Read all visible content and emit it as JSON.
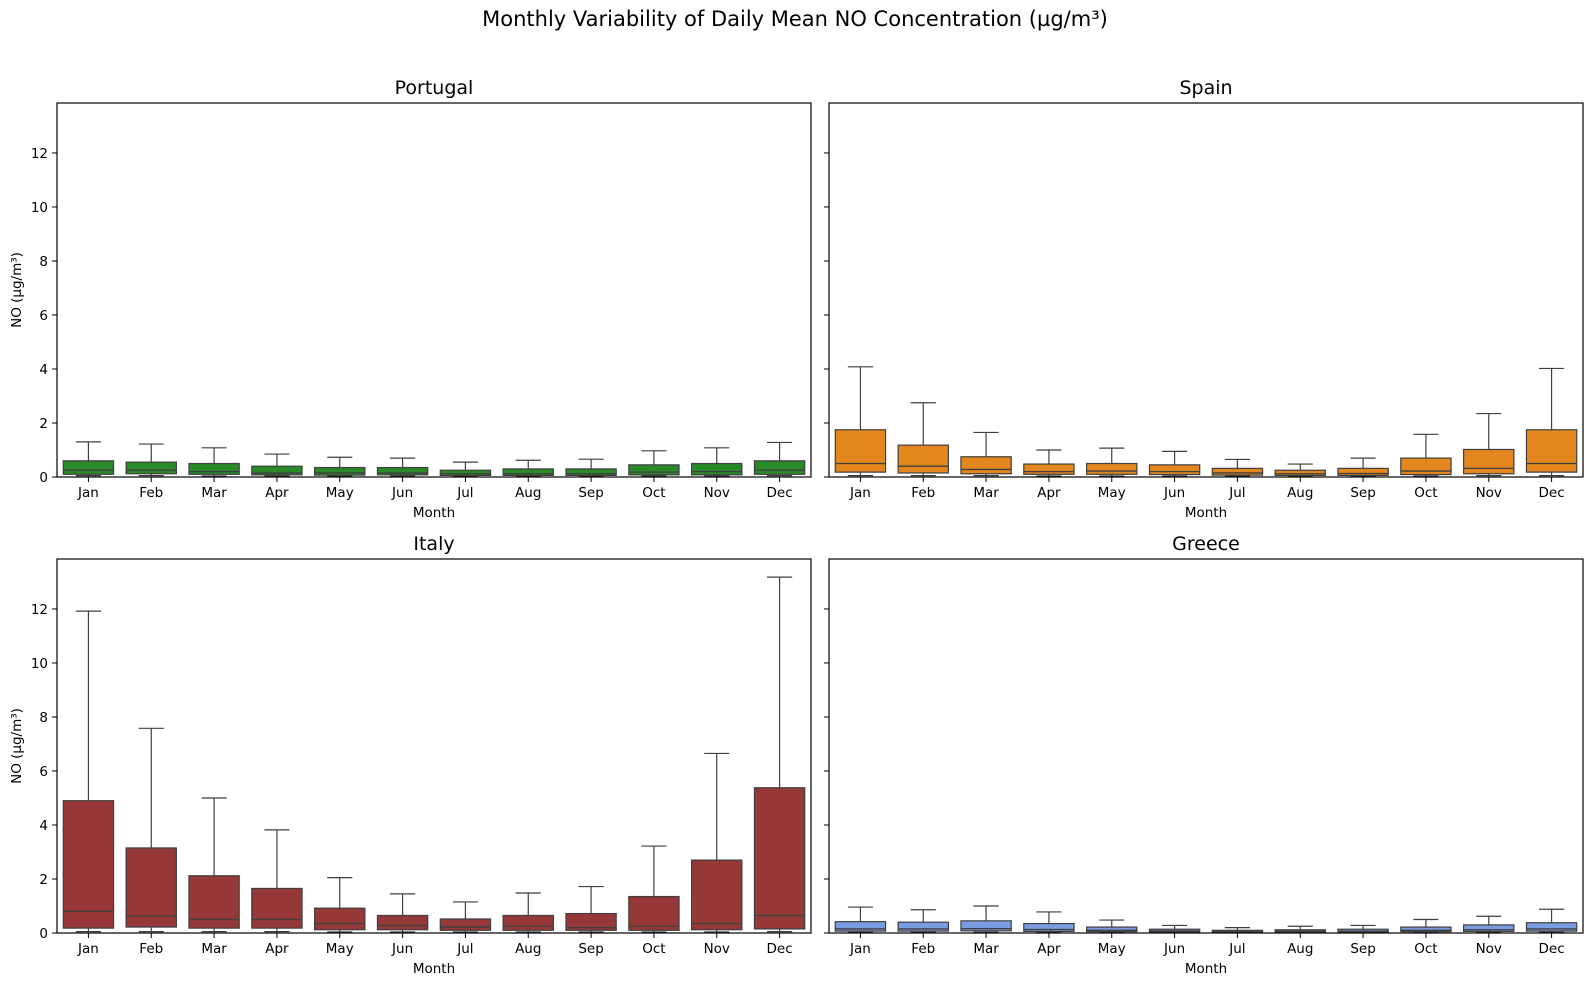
{
  "figure": {
    "title": "Monthly Variability of Daily Mean NO Concentration (µg/m³)"
  },
  "chart_data": [
    {
      "type": "box",
      "title": "Portugal",
      "color": "#2a8a2a",
      "xlabel": "Month",
      "ylabel": "NO (µg/m³)",
      "ylim": [
        0,
        13.85
      ],
      "yticks": [
        0,
        2,
        4,
        6,
        8,
        10,
        12
      ],
      "show_ytick_labels": true,
      "categories": [
        "Jan",
        "Feb",
        "Mar",
        "Apr",
        "May",
        "Jun",
        "Jul",
        "Aug",
        "Sep",
        "Oct",
        "Nov",
        "Dec"
      ],
      "boxes": [
        {
          "whislo": 0.05,
          "q1": 0.1,
          "med": 0.25,
          "q3": 0.6,
          "whishi": 1.3
        },
        {
          "whislo": 0.05,
          "q1": 0.12,
          "med": 0.25,
          "q3": 0.55,
          "whishi": 1.22
        },
        {
          "whislo": 0.04,
          "q1": 0.1,
          "med": 0.2,
          "q3": 0.5,
          "whishi": 1.08
        },
        {
          "whislo": 0.04,
          "q1": 0.08,
          "med": 0.15,
          "q3": 0.4,
          "whishi": 0.85
        },
        {
          "whislo": 0.04,
          "q1": 0.07,
          "med": 0.15,
          "q3": 0.35,
          "whishi": 0.73
        },
        {
          "whislo": 0.04,
          "q1": 0.08,
          "med": 0.15,
          "q3": 0.35,
          "whishi": 0.7
        },
        {
          "whislo": 0.04,
          "q1": 0.06,
          "med": 0.12,
          "q3": 0.25,
          "whishi": 0.55
        },
        {
          "whislo": 0.04,
          "q1": 0.06,
          "med": 0.12,
          "q3": 0.3,
          "whishi": 0.62
        },
        {
          "whislo": 0.04,
          "q1": 0.06,
          "med": 0.12,
          "q3": 0.3,
          "whishi": 0.66
        },
        {
          "whislo": 0.04,
          "q1": 0.08,
          "med": 0.18,
          "q3": 0.45,
          "whishi": 0.97
        },
        {
          "whislo": 0.04,
          "q1": 0.08,
          "med": 0.2,
          "q3": 0.5,
          "whishi": 1.08
        },
        {
          "whislo": 0.05,
          "q1": 0.1,
          "med": 0.25,
          "q3": 0.6,
          "whishi": 1.28
        }
      ]
    },
    {
      "type": "box",
      "title": "Spain",
      "color": "#e2861d",
      "xlabel": "Month",
      "ylabel": "",
      "ylim": [
        0,
        13.85
      ],
      "yticks": [
        0,
        2,
        4,
        6,
        8,
        10,
        12
      ],
      "show_ytick_labels": false,
      "categories": [
        "Jan",
        "Feb",
        "Mar",
        "Apr",
        "May",
        "Jun",
        "Jul",
        "Aug",
        "Sep",
        "Oct",
        "Nov",
        "Dec"
      ],
      "boxes": [
        {
          "whislo": 0.05,
          "q1": 0.18,
          "med": 0.5,
          "q3": 1.75,
          "whishi": 4.08
        },
        {
          "whislo": 0.05,
          "q1": 0.15,
          "med": 0.4,
          "q3": 1.18,
          "whishi": 2.75
        },
        {
          "whislo": 0.05,
          "q1": 0.12,
          "med": 0.28,
          "q3": 0.75,
          "whishi": 1.65
        },
        {
          "whislo": 0.04,
          "q1": 0.1,
          "med": 0.2,
          "q3": 0.48,
          "whishi": 1.0
        },
        {
          "whislo": 0.04,
          "q1": 0.1,
          "med": 0.22,
          "q3": 0.5,
          "whishi": 1.07
        },
        {
          "whislo": 0.04,
          "q1": 0.09,
          "med": 0.2,
          "q3": 0.45,
          "whishi": 0.95
        },
        {
          "whislo": 0.04,
          "q1": 0.07,
          "med": 0.15,
          "q3": 0.32,
          "whishi": 0.65
        },
        {
          "whislo": 0.03,
          "q1": 0.06,
          "med": 0.12,
          "q3": 0.25,
          "whishi": 0.48
        },
        {
          "whislo": 0.04,
          "q1": 0.06,
          "med": 0.13,
          "q3": 0.32,
          "whishi": 0.7
        },
        {
          "whislo": 0.04,
          "q1": 0.09,
          "med": 0.22,
          "q3": 0.7,
          "whishi": 1.58
        },
        {
          "whislo": 0.05,
          "q1": 0.12,
          "med": 0.32,
          "q3": 1.02,
          "whishi": 2.35
        },
        {
          "whislo": 0.05,
          "q1": 0.18,
          "med": 0.5,
          "q3": 1.75,
          "whishi": 4.02
        }
      ]
    },
    {
      "type": "box",
      "title": "Italy",
      "color": "#963838",
      "xlabel": "Month",
      "ylabel": "NO (µg/m³)",
      "ylim": [
        0,
        13.85
      ],
      "yticks": [
        0,
        2,
        4,
        6,
        8,
        10,
        12
      ],
      "show_ytick_labels": true,
      "categories": [
        "Jan",
        "Feb",
        "Mar",
        "Apr",
        "May",
        "Jun",
        "Jul",
        "Aug",
        "Sep",
        "Oct",
        "Nov",
        "Dec"
      ],
      "boxes": [
        {
          "whislo": 0.05,
          "q1": 0.18,
          "med": 0.8,
          "q3": 4.9,
          "whishi": 11.92
        },
        {
          "whislo": 0.05,
          "q1": 0.22,
          "med": 0.62,
          "q3": 3.15,
          "whishi": 7.58
        },
        {
          "whislo": 0.05,
          "q1": 0.18,
          "med": 0.5,
          "q3": 2.12,
          "whishi": 5.0
        },
        {
          "whislo": 0.05,
          "q1": 0.18,
          "med": 0.5,
          "q3": 1.65,
          "whishi": 3.82
        },
        {
          "whislo": 0.04,
          "q1": 0.12,
          "med": 0.35,
          "q3": 0.92,
          "whishi": 2.05
        },
        {
          "whislo": 0.04,
          "q1": 0.12,
          "med": 0.28,
          "q3": 0.65,
          "whishi": 1.45
        },
        {
          "whislo": 0.04,
          "q1": 0.1,
          "med": 0.22,
          "q3": 0.52,
          "whishi": 1.15
        },
        {
          "whislo": 0.04,
          "q1": 0.1,
          "med": 0.25,
          "q3": 0.65,
          "whishi": 1.48
        },
        {
          "whislo": 0.04,
          "q1": 0.1,
          "med": 0.2,
          "q3": 0.72,
          "whishi": 1.72
        },
        {
          "whislo": 0.04,
          "q1": 0.1,
          "med": 0.25,
          "q3": 1.35,
          "whishi": 3.22
        },
        {
          "whislo": 0.04,
          "q1": 0.12,
          "med": 0.35,
          "q3": 2.7,
          "whishi": 6.65
        },
        {
          "whislo": 0.05,
          "q1": 0.15,
          "med": 0.65,
          "q3": 5.38,
          "whishi": 13.18
        }
      ]
    },
    {
      "type": "box",
      "title": "Greece",
      "color": "#7a9ce0",
      "xlabel": "Month",
      "ylabel": "",
      "ylim": [
        0,
        13.85
      ],
      "yticks": [
        0,
        2,
        4,
        6,
        8,
        10,
        12
      ],
      "show_ytick_labels": false,
      "categories": [
        "Jan",
        "Feb",
        "Mar",
        "Apr",
        "May",
        "Jun",
        "Jul",
        "Aug",
        "Sep",
        "Oct",
        "Nov",
        "Dec"
      ],
      "boxes": [
        {
          "whislo": 0.03,
          "q1": 0.07,
          "med": 0.15,
          "q3": 0.42,
          "whishi": 0.96
        },
        {
          "whislo": 0.03,
          "q1": 0.07,
          "med": 0.15,
          "q3": 0.4,
          "whishi": 0.86
        },
        {
          "whislo": 0.03,
          "q1": 0.08,
          "med": 0.16,
          "q3": 0.45,
          "whishi": 1.0
        },
        {
          "whislo": 0.03,
          "q1": 0.06,
          "med": 0.13,
          "q3": 0.35,
          "whishi": 0.78
        },
        {
          "whislo": 0.02,
          "q1": 0.05,
          "med": 0.1,
          "q3": 0.22,
          "whishi": 0.48
        },
        {
          "whislo": 0.02,
          "q1": 0.04,
          "med": 0.08,
          "q3": 0.14,
          "whishi": 0.28
        },
        {
          "whislo": 0.02,
          "q1": 0.03,
          "med": 0.06,
          "q3": 0.1,
          "whishi": 0.2
        },
        {
          "whislo": 0.02,
          "q1": 0.04,
          "med": 0.07,
          "q3": 0.12,
          "whishi": 0.25
        },
        {
          "whislo": 0.02,
          "q1": 0.04,
          "med": 0.07,
          "q3": 0.14,
          "whishi": 0.28
        },
        {
          "whislo": 0.02,
          "q1": 0.05,
          "med": 0.1,
          "q3": 0.22,
          "whishi": 0.5
        },
        {
          "whislo": 0.03,
          "q1": 0.06,
          "med": 0.12,
          "q3": 0.3,
          "whishi": 0.62
        },
        {
          "whislo": 0.03,
          "q1": 0.07,
          "med": 0.15,
          "q3": 0.38,
          "whishi": 0.88
        }
      ]
    }
  ]
}
